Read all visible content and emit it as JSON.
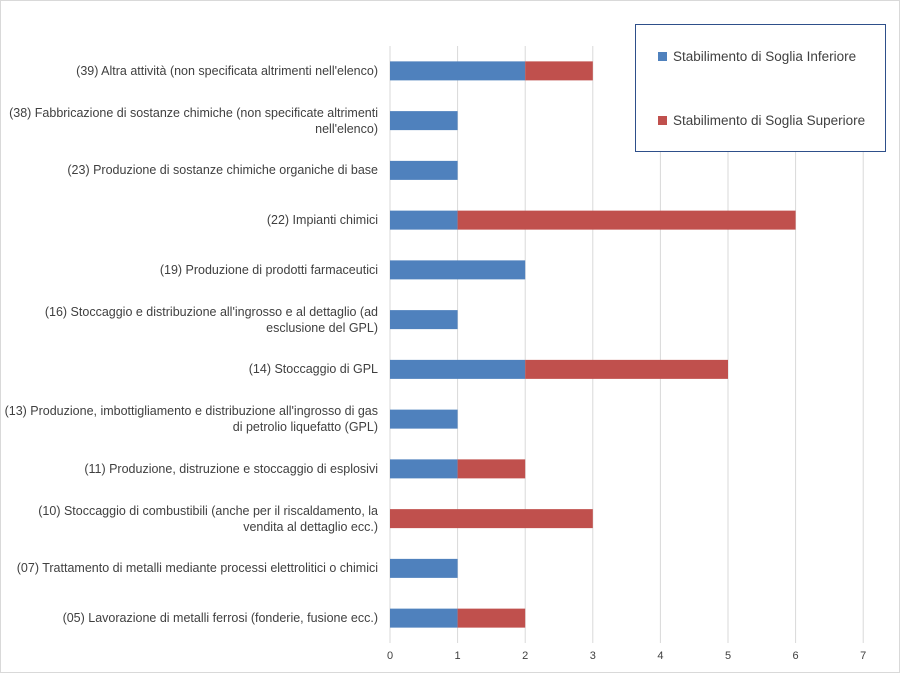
{
  "chart_data": {
    "type": "bar",
    "orientation": "horizontal",
    "stacked": true,
    "categories": [
      "(39) Altra attività  (non specificata altrimenti nell'elenco)",
      "(38) Fabbricazione di sostanze chimiche (non specificate altrimenti nell'elenco)",
      "(23) Produzione di sostanze chimiche organiche di base",
      "(22) Impianti chimici",
      "(19) Produzione di prodotti farmaceutici",
      "(16) Stoccaggio e distribuzione all'ingrosso e al dettaglio (ad esclusione del GPL)",
      "(14) Stoccaggio di GPL",
      "(13) Produzione, imbottigliamento e distribuzione all'ingrosso di gas di petrolio liquefatto (GPL)",
      "(11) Produzione, distruzione e stoccaggio di esplosivi",
      "(10) Stoccaggio di combustibili (anche per il riscaldamento, la vendita al dettaglio ecc.)",
      "(07) Trattamento di metalli mediante processi elettrolitici o chimici",
      "(05) Lavorazione di metalli ferrosi (fonderie, fusione ecc.)"
    ],
    "series": [
      {
        "name": "Stabilimento di Soglia Inferiore",
        "color": "#4f81bd",
        "values": [
          2,
          1,
          1,
          1,
          2,
          1,
          2,
          1,
          1,
          0,
          1,
          1
        ]
      },
      {
        "name": "Stabilimento di Soglia Superiore",
        "color": "#c0504d",
        "values": [
          1,
          0,
          0,
          5,
          0,
          0,
          3,
          0,
          1,
          3,
          0,
          1
        ]
      }
    ],
    "x_ticks": [
      "0",
      "1",
      "2",
      "3",
      "4",
      "5",
      "6",
      "7"
    ],
    "xlim": [
      0,
      7
    ],
    "title": "",
    "xlabel": "",
    "ylabel": "",
    "grid": "vertical",
    "legend_position": "top-right"
  }
}
